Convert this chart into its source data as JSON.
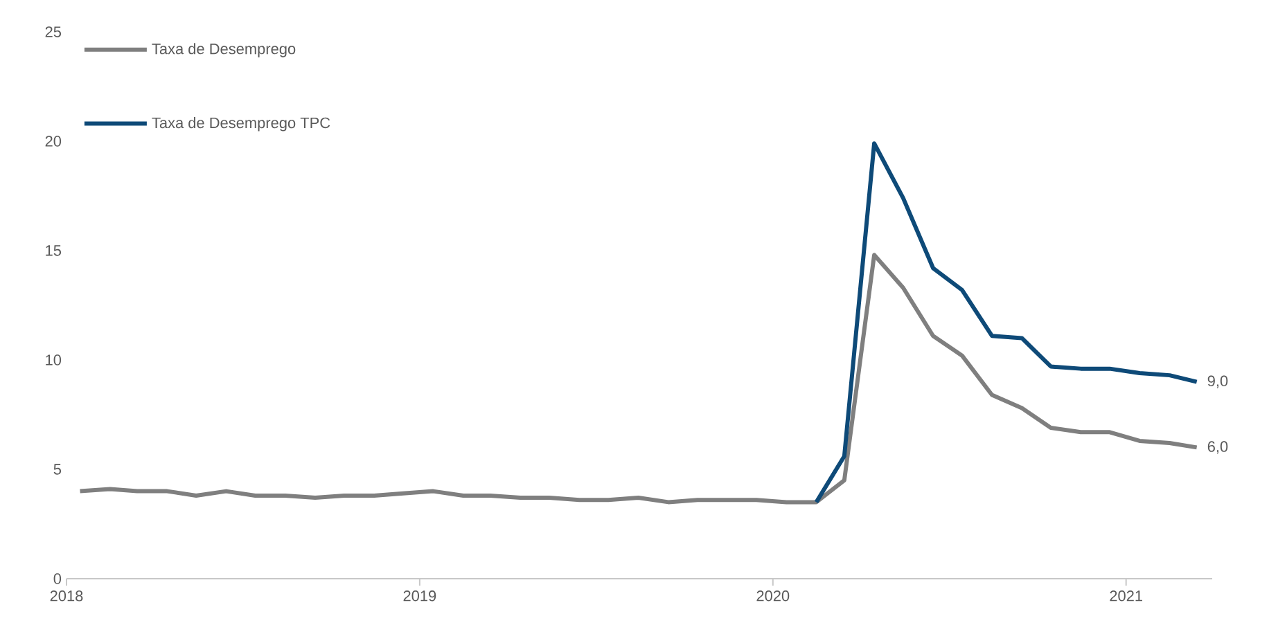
{
  "chart_data": {
    "type": "line",
    "x": [
      "2018-01-15",
      "2018-02-15",
      "2018-03-15",
      "2018-04-15",
      "2018-05-15",
      "2018-06-15",
      "2018-07-15",
      "2018-08-15",
      "2018-09-15",
      "2018-10-15",
      "2018-11-15",
      "2018-12-15",
      "2019-01-15",
      "2019-02-15",
      "2019-03-15",
      "2019-04-15",
      "2019-05-15",
      "2019-06-15",
      "2019-07-15",
      "2019-08-15",
      "2019-09-15",
      "2019-10-15",
      "2019-11-15",
      "2019-12-15",
      "2020-01-15",
      "2020-02-15",
      "2020-03-15",
      "2020-04-15",
      "2020-05-15",
      "2020-06-15",
      "2020-07-15",
      "2020-08-15",
      "2020-09-15",
      "2020-10-15",
      "2020-11-15",
      "2020-12-15",
      "2021-01-15",
      "2021-02-15",
      "2021-03-15"
    ],
    "series": [
      {
        "name": "Taxa de Desemprego",
        "color": "#7f7f7f",
        "values": [
          4.0,
          4.1,
          4.0,
          4.0,
          3.8,
          4.0,
          3.8,
          3.8,
          3.7,
          3.8,
          3.8,
          3.9,
          4.0,
          3.8,
          3.8,
          3.7,
          3.7,
          3.6,
          3.6,
          3.7,
          3.5,
          3.6,
          3.6,
          3.6,
          3.5,
          3.5,
          4.5,
          14.8,
          13.3,
          11.1,
          10.2,
          8.4,
          7.8,
          6.9,
          6.7,
          6.7,
          6.3,
          6.2,
          6.0
        ],
        "value_labels": [
          null,
          null,
          null,
          null,
          null,
          null,
          null,
          null,
          null,
          null,
          null,
          null,
          null,
          null,
          null,
          null,
          null,
          null,
          null,
          null,
          null,
          null,
          null,
          null,
          null,
          null,
          null,
          null,
          null,
          null,
          null,
          null,
          null,
          null,
          null,
          null,
          null,
          null,
          "6,0"
        ]
      },
      {
        "name": "Taxa de Desemprego TPC",
        "color": "#0e4a78",
        "values": [
          null,
          null,
          null,
          null,
          null,
          null,
          null,
          null,
          null,
          null,
          null,
          null,
          null,
          null,
          null,
          null,
          null,
          null,
          null,
          null,
          null,
          null,
          null,
          null,
          null,
          3.5,
          5.6,
          19.9,
          17.4,
          14.2,
          13.2,
          11.1,
          11.0,
          9.7,
          9.6,
          9.6,
          9.4,
          9.3,
          9.0
        ],
        "value_labels": [
          null,
          null,
          null,
          null,
          null,
          null,
          null,
          null,
          null,
          null,
          null,
          null,
          null,
          null,
          null,
          null,
          null,
          null,
          null,
          null,
          null,
          null,
          null,
          null,
          null,
          null,
          null,
          null,
          null,
          null,
          null,
          null,
          null,
          null,
          null,
          null,
          null,
          null,
          "9,0"
        ]
      }
    ],
    "xlim": [
      "2018-01-01",
      "2021-03-31"
    ],
    "xticks": [
      "2018",
      "2019",
      "2020",
      "2021"
    ],
    "ylim": [
      0,
      25
    ],
    "yticks": [
      0,
      5,
      10,
      15,
      20,
      25
    ],
    "grid": false,
    "legend": "top left",
    "marker": "none",
    "line_style": "solid"
  }
}
